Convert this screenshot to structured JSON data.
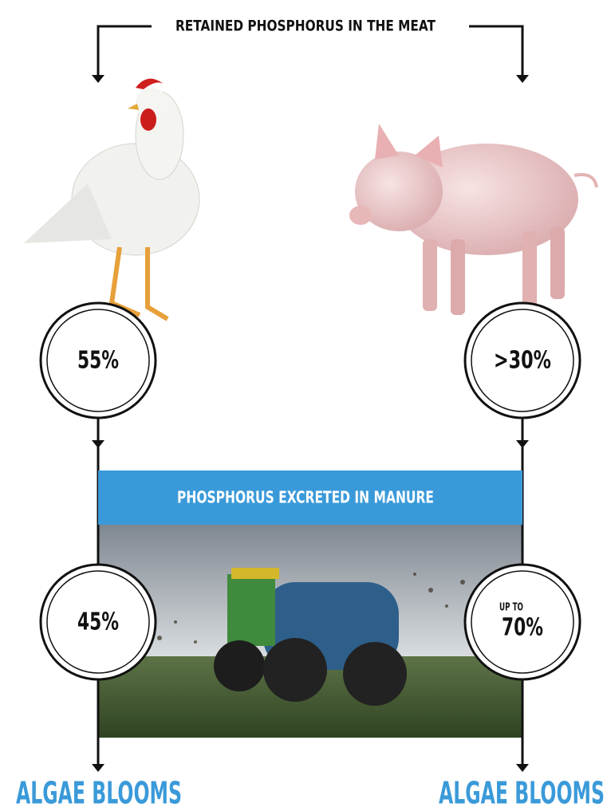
{
  "header": {
    "title": "RETAINED PHOSPHORUS IN THE MEAT"
  },
  "banner": {
    "title": "PHOSPHORUS EXCRETED IN MANURE"
  },
  "left": {
    "retained": "55%",
    "excreted": "45%",
    "outcome": "ALGAE BLOOMS"
  },
  "right": {
    "retained": ">30%",
    "excreted_prefix": "UP TO",
    "excreted": "70%",
    "outcome": "ALGAE BLOOMS"
  }
}
